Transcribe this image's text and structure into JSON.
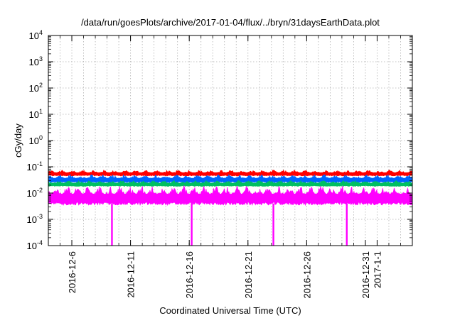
{
  "chart_data": {
    "type": "line",
    "title": "/data/run/goesPlots/archive/2017-01-04/flux/../bryn/31daysEarthData.plot",
    "xlabel": "Coordinated Universal Time (UTC)",
    "ylabel": "cGy/day",
    "yscale": "log",
    "ylim": [
      0.0001,
      10000
    ],
    "xlim": [
      "2016-12-04",
      "2017-01-04"
    ],
    "y_ticks": [
      {
        "base": "10",
        "exp": "-4",
        "value": 0.0001
      },
      {
        "base": "10",
        "exp": "-3",
        "value": 0.001
      },
      {
        "base": "10",
        "exp": "-2",
        "value": 0.01
      },
      {
        "base": "10",
        "exp": "-1",
        "value": 0.1
      },
      {
        "base": "10",
        "exp": "0",
        "value": 1
      },
      {
        "base": "10",
        "exp": "1",
        "value": 10
      },
      {
        "base": "10",
        "exp": "2",
        "value": 100
      },
      {
        "base": "10",
        "exp": "3",
        "value": 1000
      },
      {
        "base": "10",
        "exp": "4",
        "value": 10000
      }
    ],
    "x_ticks": [
      {
        "label": "2016-12-6",
        "date": "2016-12-06"
      },
      {
        "label": "2016-12-11",
        "date": "2016-12-11"
      },
      {
        "label": "2016-12-16",
        "date": "2016-12-16"
      },
      {
        "label": "2016-12-21",
        "date": "2016-12-21"
      },
      {
        "label": "2016-12-26",
        "date": "2016-12-26"
      },
      {
        "label": "2016-12-31",
        "date": "2016-12-31"
      },
      {
        "label": "2017-1-1",
        "date": "2017-01-01"
      }
    ],
    "grid": true,
    "series": [
      {
        "color": "#ff0000",
        "range": [
          0.045,
          0.075
        ]
      },
      {
        "color": "#0066ff",
        "range": [
          0.025,
          0.05
        ]
      },
      {
        "color": "#00c060",
        "range": [
          0.018,
          0.03
        ]
      },
      {
        "color": "#ff00ff",
        "range": [
          0.0035,
          0.02
        ]
      }
    ],
    "dips": [
      {
        "date": "2016-12-09 10:00",
        "min": 0.0001
      },
      {
        "date": "2016-12-16 05:00",
        "min": 0.0001
      },
      {
        "date": "2016-12-23 04:00",
        "min": 0.0001
      },
      {
        "date": "2016-12-29 10:00",
        "min": 0.0001
      }
    ]
  }
}
